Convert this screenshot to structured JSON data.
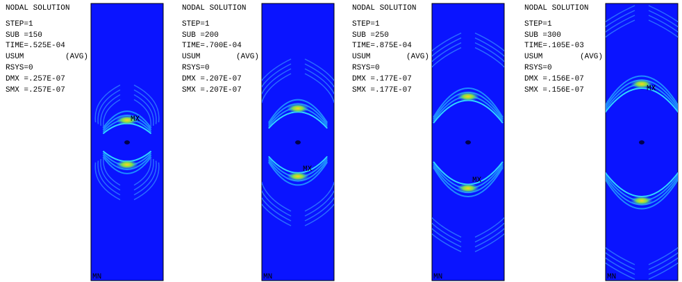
{
  "panels": [
    {
      "title": "NODAL SOLUTION",
      "step": "STEP=1",
      "sub": "SUB =150",
      "time": "TIME=.525E-04",
      "usum": "USUM",
      "avg": "(AVG)",
      "rsys": "RSYS=0",
      "dmx": "DMX =.257E-07",
      "smx": "SMX =.257E-07",
      "mx": "MX",
      "mn": "MN"
    },
    {
      "title": "NODAL SOLUTION",
      "step": "STEP=1",
      "sub": "SUB =200",
      "time": "TIME=.700E-04",
      "usum": "USUM",
      "avg": "(AVG)",
      "rsys": "RSYS=0",
      "dmx": "DMX =.207E-07",
      "smx": "SMX =.207E-07",
      "mx": "MX",
      "mn": "MN"
    },
    {
      "title": "NODAL SOLUTION",
      "step": "STEP=1",
      "sub": "SUB =250",
      "time": "TIME=.875E-04",
      "usum": "USUM",
      "avg": "(AVG)",
      "rsys": "RSYS=0",
      "dmx": "DMX =.177E-07",
      "smx": "SMX =.177E-07",
      "mx": "MX",
      "mn": "MN"
    },
    {
      "title": "NODAL SOLUTION",
      "step": "STEP=1",
      "sub": "SUB =300",
      "time": "TIME=.105E-03",
      "usum": "USUM",
      "avg": "(AVG)",
      "rsys": "RSYS=0",
      "dmx": "DMX =.156E-07",
      "smx": "SMX =.156E-07",
      "mx": "MX",
      "mn": "MN"
    }
  ]
}
